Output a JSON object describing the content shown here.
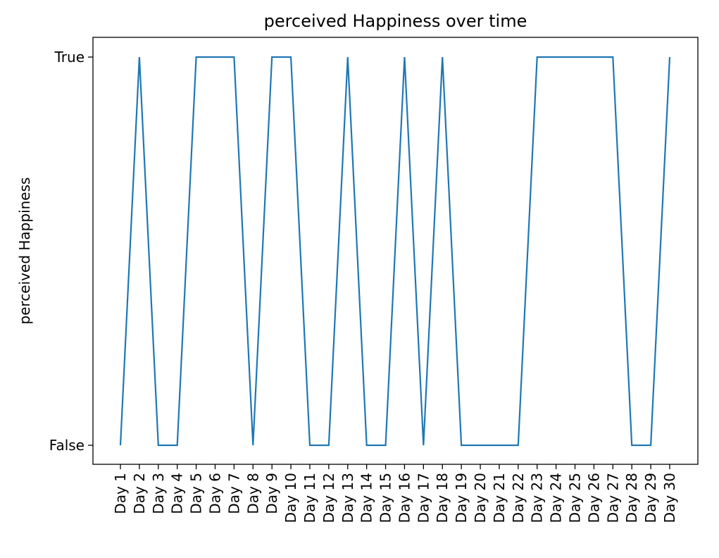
{
  "chart_data": {
    "type": "line",
    "title": "perceived Happiness over time",
    "xlabel": "",
    "ylabel": "perceived Happiness",
    "categories": [
      "Day 1",
      "Day 2",
      "Day 3",
      "Day 4",
      "Day 5",
      "Day 6",
      "Day 7",
      "Day 8",
      "Day 9",
      "Day 10",
      "Day 11",
      "Day 12",
      "Day 13",
      "Day 14",
      "Day 15",
      "Day 16",
      "Day 17",
      "Day 18",
      "Day 19",
      "Day 20",
      "Day 21",
      "Day 22",
      "Day 23",
      "Day 24",
      "Day 25",
      "Day 26",
      "Day 27",
      "Day 28",
      "Day 29",
      "Day 30"
    ],
    "y_categories": [
      "False",
      "True"
    ],
    "values": [
      false,
      true,
      false,
      false,
      true,
      true,
      true,
      false,
      true,
      true,
      false,
      false,
      true,
      false,
      false,
      true,
      false,
      true,
      false,
      false,
      false,
      false,
      true,
      true,
      true,
      true,
      true,
      false,
      false,
      true
    ],
    "line_color": "#1f77b4",
    "grid": false,
    "legend": "none"
  }
}
